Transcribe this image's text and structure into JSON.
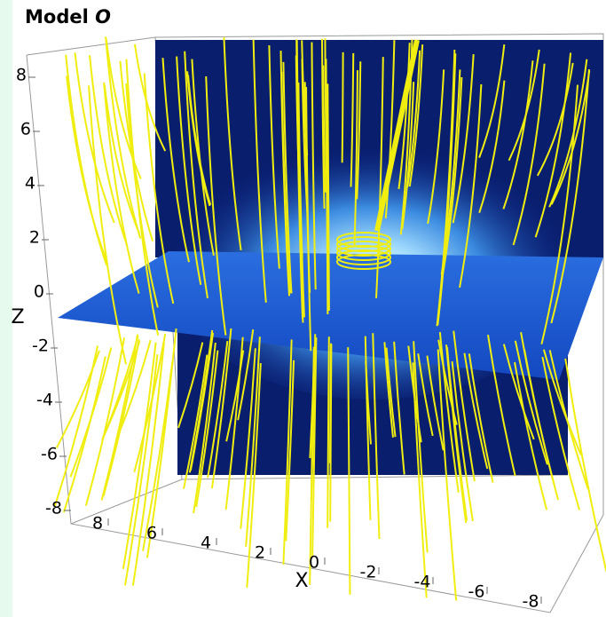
{
  "header": {
    "title": {
      "prefix": "Model",
      "symbol": "O"
    }
  },
  "axes": {
    "z": {
      "label": "Z",
      "ticks": [
        8,
        6,
        4,
        2,
        0,
        -2,
        -4,
        -6,
        -8
      ]
    },
    "x": {
      "label": "X",
      "ticks": [
        8,
        6,
        4,
        2,
        0,
        -2,
        -4,
        -6,
        -8
      ]
    }
  }
}
